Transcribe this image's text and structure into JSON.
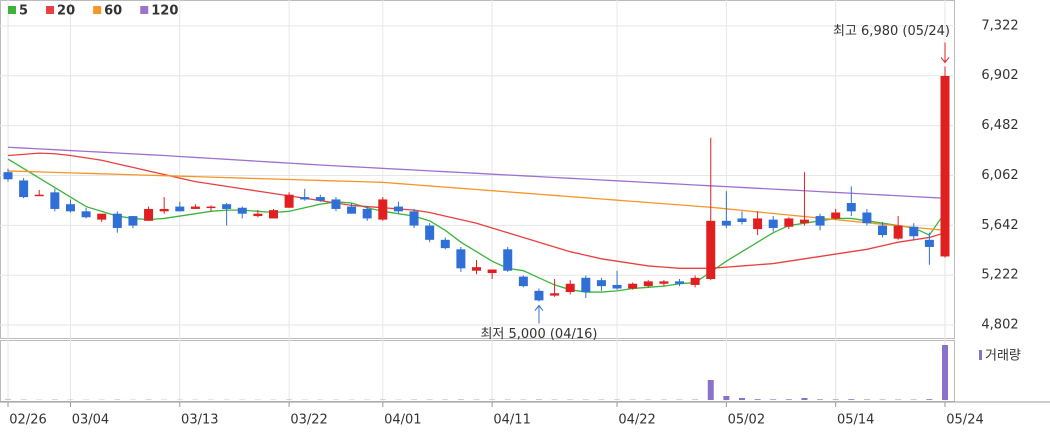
{
  "chart_data": {
    "type": "candlestick",
    "legend": "top-left",
    "categories": [
      "02/26",
      null,
      null,
      null,
      "03/04",
      null,
      null,
      null,
      null,
      null,
      null,
      "03/13",
      null,
      null,
      null,
      null,
      null,
      null,
      "03/22",
      null,
      null,
      null,
      null,
      null,
      "04/01",
      null,
      null,
      null,
      null,
      null,
      null,
      "04/11",
      null,
      null,
      null,
      null,
      null,
      null,
      null,
      "04/22",
      null,
      null,
      null,
      null,
      null,
      null,
      "05/02",
      null,
      null,
      null,
      null,
      null,
      null,
      "05/14",
      null,
      null,
      null,
      null,
      null,
      null,
      "05/24"
    ],
    "open": [
      6090,
      6020,
      5890,
      5920,
      5820,
      5760,
      5690,
      5740,
      5720,
      5680,
      5760,
      5800,
      5780,
      5790,
      5820,
      5790,
      5720,
      5700,
      5790,
      5880,
      5880,
      5860,
      5800,
      5780,
      5690,
      5800,
      5760,
      5640,
      5520,
      5440,
      5260,
      5240,
      5440,
      5210,
      5090,
      5050,
      5080,
      5200,
      5180,
      5140,
      5110,
      5130,
      5150,
      5170,
      5140,
      5190,
      5680,
      5700,
      5610,
      5690,
      5630,
      5660,
      5720,
      5700,
      5830,
      5750,
      5640,
      5530,
      5630,
      5520,
      5380
    ],
    "high": [
      6120,
      6040,
      5940,
      5950,
      5860,
      5790,
      5740,
      5760,
      5720,
      5800,
      5880,
      5840,
      5820,
      5810,
      5830,
      5800,
      5770,
      5780,
      5920,
      5950,
      5900,
      5880,
      5830,
      5800,
      5880,
      5840,
      5780,
      5660,
      5540,
      5460,
      5350,
      5270,
      5460,
      5220,
      5110,
      5190,
      5180,
      5220,
      5200,
      5260,
      5160,
      5180,
      5180,
      5190,
      5220,
      6380,
      5930,
      5760,
      5760,
      5720,
      5710,
      6090,
      5740,
      5780,
      5970,
      5780,
      5670,
      5720,
      5660,
      5580,
      6980
    ],
    "low": [
      6010,
      5870,
      5890,
      5760,
      5750,
      5700,
      5670,
      5580,
      5620,
      5680,
      5740,
      5760,
      5780,
      5760,
      5640,
      5700,
      5710,
      5700,
      5790,
      5850,
      5840,
      5760,
      5740,
      5680,
      5680,
      5740,
      5620,
      5500,
      5440,
      5250,
      5230,
      5190,
      5250,
      5120,
      5000,
      5040,
      5060,
      5030,
      5090,
      5100,
      5100,
      5120,
      5130,
      5130,
      5120,
      5180,
      5620,
      5650,
      5560,
      5590,
      5610,
      5640,
      5600,
      5690,
      5720,
      5640,
      5540,
      5520,
      5520,
      5310,
      5370
    ],
    "close": [
      6030,
      5880,
      5900,
      5780,
      5760,
      5710,
      5740,
      5620,
      5640,
      5780,
      5780,
      5760,
      5800,
      5800,
      5780,
      5740,
      5740,
      5770,
      5900,
      5860,
      5850,
      5780,
      5740,
      5700,
      5860,
      5760,
      5640,
      5520,
      5450,
      5280,
      5290,
      5270,
      5260,
      5130,
      5010,
      5070,
      5150,
      5080,
      5130,
      5110,
      5150,
      5170,
      5170,
      5150,
      5200,
      5680,
      5640,
      5670,
      5700,
      5620,
      5700,
      5690,
      5640,
      5750,
      5760,
      5660,
      5560,
      5640,
      5550,
      5460,
      6900
    ],
    "up_color": "#e02020",
    "down_color": "#2f6fd6",
    "series": [
      {
        "name": "5",
        "color": "#3cb43c",
        "values": [
          6200,
          6120,
          6040,
          5960,
          5880,
          5800,
          5760,
          5720,
          5700,
          5690,
          5700,
          5720,
          5740,
          5760,
          5770,
          5770,
          5760,
          5750,
          5760,
          5790,
          5820,
          5840,
          5830,
          5790,
          5760,
          5740,
          5720,
          5680,
          5600,
          5500,
          5420,
          5340,
          5280,
          5260,
          5200,
          5140,
          5100,
          5080,
          5080,
          5090,
          5110,
          5120,
          5130,
          5150,
          5160,
          5250,
          5340,
          5420,
          5500,
          5580,
          5640,
          5660,
          5680,
          5700,
          5700,
          5680,
          5660,
          5640,
          5620,
          5560,
          5750
        ]
      },
      {
        "name": "20",
        "color": "#e84040",
        "values": [
          6230,
          6240,
          6250,
          6245,
          6230,
          6210,
          6190,
          6160,
          6130,
          6100,
          6070,
          6040,
          6010,
          5990,
          5970,
          5950,
          5930,
          5910,
          5890,
          5870,
          5850,
          5830,
          5810,
          5800,
          5790,
          5780,
          5770,
          5750,
          5720,
          5690,
          5660,
          5620,
          5580,
          5540,
          5500,
          5460,
          5420,
          5390,
          5360,
          5340,
          5320,
          5300,
          5290,
          5280,
          5280,
          5280,
          5290,
          5300,
          5310,
          5320,
          5340,
          5360,
          5380,
          5400,
          5420,
          5440,
          5470,
          5500,
          5520,
          5540,
          5580
        ]
      },
      {
        "name": "60",
        "color": "#f5962a",
        "values": [
          6100,
          6096,
          6092,
          6088,
          6084,
          6080,
          6076,
          6072,
          6068,
          6064,
          6060,
          6056,
          6052,
          6048,
          6044,
          6040,
          6036,
          6032,
          6028,
          6024,
          6020,
          6016,
          6012,
          6008,
          6004,
          5994,
          5984,
          5974,
          5964,
          5954,
          5944,
          5934,
          5924,
          5914,
          5904,
          5894,
          5884,
          5874,
          5864,
          5854,
          5844,
          5834,
          5824,
          5814,
          5804,
          5794,
          5781,
          5768,
          5755,
          5742,
          5729,
          5716,
          5703,
          5690,
          5677,
          5664,
          5651,
          5638,
          5625,
          5612,
          5600
        ]
      },
      {
        "name": "120",
        "color": "#a070d0",
        "values": [
          6300,
          6293,
          6286,
          6279,
          6272,
          6265,
          6258,
          6251,
          6244,
          6237,
          6230,
          6222,
          6214,
          6206,
          6198,
          6190,
          6182,
          6174,
          6166,
          6158,
          6150,
          6143,
          6136,
          6129,
          6122,
          6115,
          6108,
          6101,
          6094,
          6087,
          6080,
          6073,
          6066,
          6059,
          6052,
          6045,
          6038,
          6031,
          6024,
          6017,
          6010,
          6003,
          5996,
          5989,
          5982,
          5975,
          5968,
          5961,
          5954,
          5947,
          5940,
          5933,
          5926,
          5919,
          5912,
          5905,
          5898,
          5891,
          5884,
          5877,
          5870
        ]
      }
    ],
    "volume_label": "거래량",
    "volume_color": "#8a72c8",
    "volume": [
      0.4,
      0.3,
      0.2,
      0.3,
      0.2,
      0.2,
      0.2,
      0.3,
      0.2,
      0.3,
      0.2,
      0.2,
      0.2,
      0.2,
      0.2,
      0.2,
      0.2,
      0.2,
      0.3,
      0.2,
      0.2,
      0.2,
      0.2,
      0.2,
      0.3,
      0.2,
      0.3,
      0.3,
      0.3,
      0.4,
      0.3,
      0.3,
      0.3,
      0.3,
      0.4,
      0.3,
      0.3,
      0.3,
      0.3,
      0.3,
      0.3,
      0.3,
      0.3,
      0.3,
      0.4,
      20,
      4,
      2,
      0.8,
      0.6,
      0.7,
      2,
      0.6,
      0.5,
      0.8,
      0.5,
      0.4,
      0.4,
      0.4,
      0.8,
      55
    ],
    "ylim": [
      4693,
      7540
    ],
    "yticks": [
      {
        "value": 4802,
        "label": "4,802"
      },
      {
        "value": 5222,
        "label": "5,222"
      },
      {
        "value": 5642,
        "label": "5,642"
      },
      {
        "value": 6062,
        "label": "6,062"
      },
      {
        "value": 6482,
        "label": "6,482"
      },
      {
        "value": 6902,
        "label": "6,902"
      },
      {
        "value": 7322,
        "label": "7,322"
      }
    ],
    "grid": true,
    "annotations": [
      {
        "label": "최고 6,980 (05/24)",
        "value": 6980,
        "kind": "high",
        "color": "#e02020"
      },
      {
        "label": "최저 5,000 (04/16)",
        "value": 5000,
        "kind": "low",
        "color": "#2f6fd6"
      }
    ]
  }
}
